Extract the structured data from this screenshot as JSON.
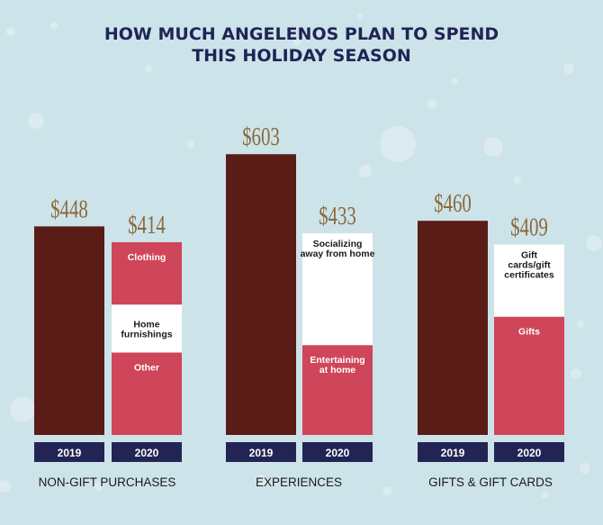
{
  "title_lines": [
    "HOW MUCH ANGELENOS PLAN TO SPEND",
    "THIS HOLIDAY SEASON"
  ],
  "colors": {
    "background": "#cde3ea",
    "bar_2019": "#5a1c16",
    "segment_red": "#cf4559",
    "segment_white": "#ffffff",
    "year_box": "#222554",
    "value_label": "#8a6a3a",
    "title": "#1f2455"
  },
  "chart_data": {
    "type": "bar",
    "title": "HOW MUCH ANGELENOS PLAN TO SPEND THIS HOLIDAY SEASON",
    "categories": [
      "NON-GIFT PURCHASES",
      "EXPERIENCES",
      "GIFTS & GIFT CARDS"
    ],
    "ylim": [
      0,
      650
    ],
    "groups": [
      {
        "label": "NON-GIFT PURCHASES",
        "bars": [
          {
            "year": "2019",
            "value": 448,
            "value_label": "$448",
            "segments": [
              {
                "label": "",
                "value": 448,
                "color": "#5a1c16"
              }
            ]
          },
          {
            "year": "2020",
            "value": 414,
            "value_label": "$414",
            "segments": [
              {
                "label": "Other",
                "value": 177,
                "color": "#cf4559"
              },
              {
                "label": "Home furnishings",
                "value": 103,
                "color": "#ffffff"
              },
              {
                "label": "Clothing",
                "value": 134,
                "color": "#cf4559"
              }
            ]
          }
        ]
      },
      {
        "label": "EXPERIENCES",
        "bars": [
          {
            "year": "2019",
            "value": 603,
            "value_label": "$603",
            "segments": [
              {
                "label": "",
                "value": 603,
                "color": "#5a1c16"
              }
            ]
          },
          {
            "year": "2020",
            "value": 433,
            "value_label": "$433",
            "segments": [
              {
                "label": "Entertaining at home",
                "value": 193,
                "color": "#cf4559"
              },
              {
                "label": "Socializing away from home",
                "value": 240,
                "color": "#ffffff"
              }
            ]
          }
        ]
      },
      {
        "label": "GIFTS & GIFT CARDS",
        "bars": [
          {
            "year": "2019",
            "value": 460,
            "value_label": "$460",
            "segments": [
              {
                "label": "",
                "value": 460,
                "color": "#5a1c16"
              }
            ]
          },
          {
            "year": "2020",
            "value": 409,
            "value_label": "$409",
            "segments": [
              {
                "label": "Gifts",
                "value": 254,
                "color": "#cf4559"
              },
              {
                "label": "Gift cards/gift certificates",
                "value": 155,
                "color": "#ffffff"
              }
            ]
          }
        ]
      }
    ]
  }
}
